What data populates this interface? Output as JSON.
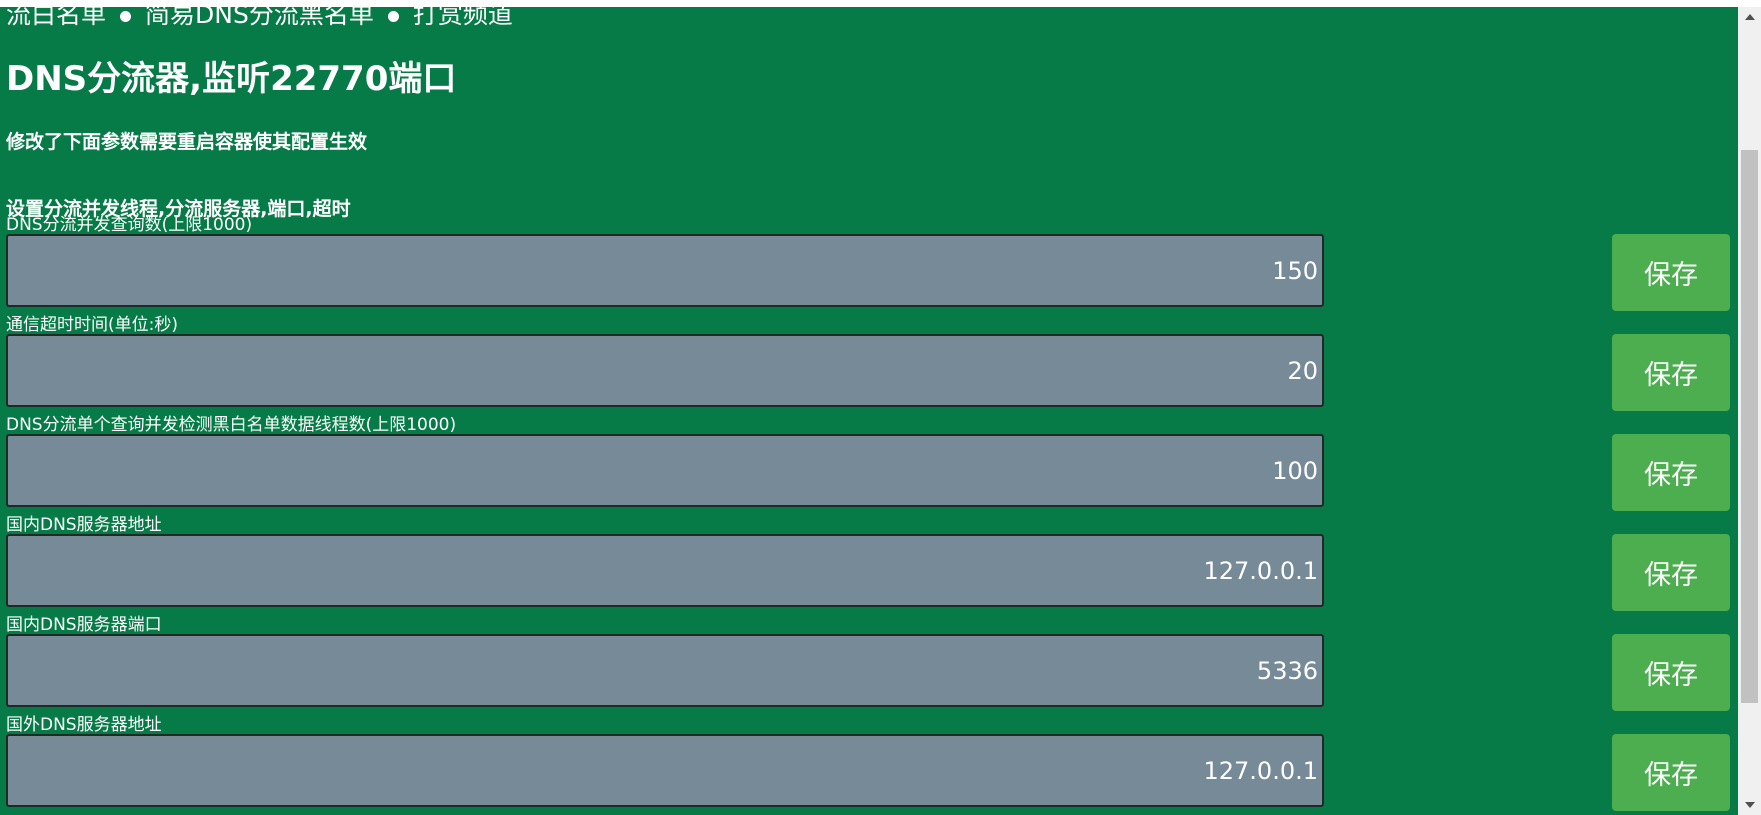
{
  "nav": {
    "items": [
      "流白名单",
      "简易DNS分流黑名单",
      "打赏频道"
    ]
  },
  "title": "DNS分流器,监听22770端口",
  "notice": "修改了下面参数需要重启容器使其配置生效",
  "section_title": "设置分流并发线程,分流服务器,端口,超时",
  "save_label": "保存",
  "fields": [
    {
      "label": "DNS分流并发查询数(上限1000)",
      "value": "150"
    },
    {
      "label": "通信超时时间(单位:秒)",
      "value": "20"
    },
    {
      "label": "DNS分流单个查询并发检测黑白名单数据线程数(上限1000)",
      "value": "100"
    },
    {
      "label": "国内DNS服务器地址",
      "value": "127.0.0.1"
    },
    {
      "label": "国内DNS服务器端口",
      "value": "5336"
    },
    {
      "label": "国外DNS服务器地址",
      "value": "127.0.0.1"
    }
  ],
  "colors": {
    "background": "#067a47",
    "input_bg": "#778a98",
    "button_bg": "#4cae4f"
  }
}
